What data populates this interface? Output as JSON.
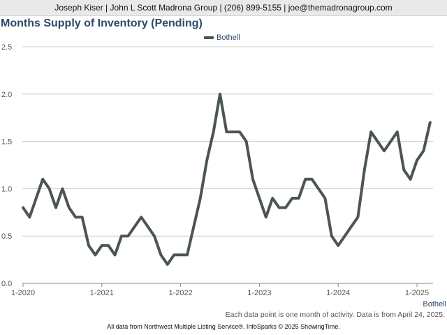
{
  "header": {
    "text": "Joseph Kiser | John L Scott Madrona Group | (206) 899-5155 | joe@themadronagroup.com"
  },
  "note": "Each data point is one month of activity. Data is from April 24, 2025.",
  "footer": "All data from Northwest Multiple Listing Service®. InfoSparks © 2025 ShowingTime.",
  "colors": {
    "series_line": "#4b5651",
    "title": "#2c4a6b",
    "grid": "#c8c8c8",
    "header_bg": "#e9e9e9"
  },
  "chart_data": {
    "type": "line",
    "title": "Months Supply of Inventory (Pending)",
    "xlabel": "",
    "ylabel": "",
    "ylim": [
      0,
      2.5
    ],
    "y_ticks": [
      0.0,
      0.5,
      1.0,
      1.5,
      2.0,
      2.5
    ],
    "y_tick_labels": [
      "0.0",
      "0.5",
      "1.0",
      "1.5",
      "2.0",
      "2.5"
    ],
    "x_tick_labels": [
      "1-2020",
      "1-2021",
      "1-2022",
      "1-2023",
      "1-2024",
      "1-2025"
    ],
    "x_start": "2020-01",
    "x_end": "2025-03",
    "grid": true,
    "legend_position": "top-center",
    "end_label": "Bothell",
    "series": [
      {
        "name": "Bothell",
        "color": "#4b5651",
        "x": [
          "2020-01",
          "2020-02",
          "2020-03",
          "2020-04",
          "2020-05",
          "2020-06",
          "2020-07",
          "2020-08",
          "2020-09",
          "2020-10",
          "2020-11",
          "2020-12",
          "2021-01",
          "2021-02",
          "2021-03",
          "2021-04",
          "2021-05",
          "2021-06",
          "2021-07",
          "2021-08",
          "2021-09",
          "2021-10",
          "2021-11",
          "2021-12",
          "2022-01",
          "2022-02",
          "2022-03",
          "2022-04",
          "2022-05",
          "2022-06",
          "2022-07",
          "2022-08",
          "2022-09",
          "2022-10",
          "2022-11",
          "2022-12",
          "2023-01",
          "2023-02",
          "2023-03",
          "2023-04",
          "2023-05",
          "2023-06",
          "2023-07",
          "2023-08",
          "2023-09",
          "2023-10",
          "2023-11",
          "2023-12",
          "2024-01",
          "2024-02",
          "2024-03",
          "2024-04",
          "2024-05",
          "2024-06",
          "2024-07",
          "2024-08",
          "2024-09",
          "2024-10",
          "2024-11",
          "2024-12",
          "2025-01",
          "2025-02",
          "2025-03"
        ],
        "values": [
          0.8,
          0.7,
          0.9,
          1.1,
          1.0,
          0.8,
          1.0,
          0.8,
          0.7,
          0.7,
          0.4,
          0.3,
          0.4,
          0.4,
          0.3,
          0.5,
          0.5,
          0.6,
          0.7,
          0.6,
          0.5,
          0.3,
          0.2,
          0.3,
          0.3,
          0.3,
          0.6,
          0.9,
          1.3,
          1.6,
          2.0,
          1.6,
          1.6,
          1.6,
          1.5,
          1.1,
          0.9,
          0.7,
          0.9,
          0.8,
          0.8,
          0.9,
          0.9,
          1.1,
          1.1,
          1.0,
          0.9,
          0.5,
          0.4,
          0.5,
          0.6,
          0.7,
          1.2,
          1.6,
          1.5,
          1.4,
          1.5,
          1.6,
          1.2,
          1.1,
          1.3,
          1.4,
          1.7
        ]
      }
    ]
  }
}
